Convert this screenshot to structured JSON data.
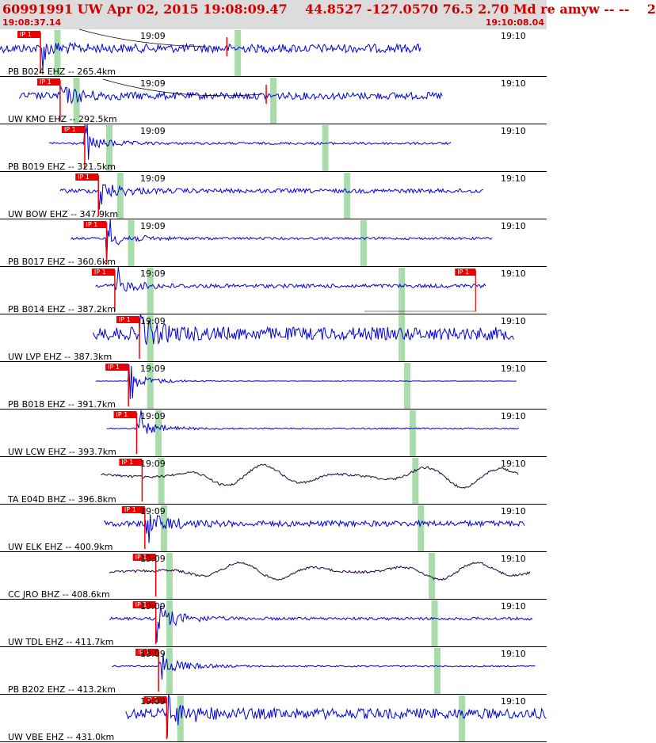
{
  "header": {
    "title": "60991991 UW Apr 02, 2015 19:08:09.47    44.8527 -127.0570 76.5 2.70 Md re amyw -- --    2",
    "start_time": "19:08:37.14",
    "end_time": "19:10:08.04"
  },
  "time_marks": [
    "19:09",
    "19:10"
  ],
  "pick_label": "IP 1",
  "colors": {
    "trace": "#0000dd",
    "broadband": "#220033",
    "pick": "#ee0000",
    "green_marker": "#a8dcaa",
    "header_text": "#cc0000",
    "header_bg": "#dcdcdc"
  },
  "traces": [
    {
      "label": "PB B024 EHZ -- 265.4km",
      "start": 0.0,
      "end": 0.77,
      "pick": 0.074,
      "green": [
        0.105,
        0.435
      ],
      "amp": 0.18,
      "burst": 0.2,
      "kind": "sp",
      "red2": 0.415,
      "label_1909": true
    },
    {
      "label": "UW KMO EHZ -- 292.5km",
      "start": 0.035,
      "end": 0.81,
      "pick": 0.11,
      "green": [
        0.14,
        0.5
      ],
      "amp": 0.15,
      "burst": 0.32,
      "kind": "sp",
      "red2": 0.487,
      "label_1909": true
    },
    {
      "label": "PB B019 EHZ -- 321.5km",
      "start": 0.09,
      "end": 0.825,
      "pick": 0.155,
      "green": [
        0.2,
        0.595
      ],
      "amp": 0.05,
      "burst": 0.3,
      "kind": "sp",
      "label_1909": true
    },
    {
      "label": "UW BOW EHZ -- 347.9km",
      "start": 0.11,
      "end": 0.885,
      "pick": 0.18,
      "green": [
        0.22,
        0.635
      ],
      "amp": 0.09,
      "burst": 0.35,
      "kind": "sp",
      "label_1909": true
    },
    {
      "label": "PB B017 EHZ -- 360.6km",
      "start": 0.13,
      "end": 0.9,
      "pick": 0.195,
      "green": [
        0.24,
        0.665
      ],
      "amp": 0.05,
      "burst": 0.35,
      "kind": "sp",
      "label_1909": true
    },
    {
      "label": "PB B014 EHZ -- 387.2km",
      "start": 0.175,
      "end": 0.89,
      "pick": 0.21,
      "green": [
        0.275,
        0.735
      ],
      "amp": 0.08,
      "burst": 0.25,
      "kind": "sp",
      "late_pick": 0.87,
      "label_1909": true
    },
    {
      "label": "UW LVP EHZ -- 387.3km",
      "start": 0.17,
      "end": 0.94,
      "pick": 0.255,
      "green": [
        0.275,
        0.735
      ],
      "amp": 0.27,
      "burst": 0.4,
      "kind": "sp",
      "label_1909": true
    },
    {
      "label": "PB B018 EHZ -- 391.7km",
      "start": 0.175,
      "end": 0.945,
      "pick": 0.235,
      "green": [
        0.275,
        0.745
      ],
      "amp": 0.01,
      "burst": 0.35,
      "kind": "sp",
      "label_1909": true
    },
    {
      "label": "UW LCW EHZ -- 393.7km",
      "start": 0.195,
      "end": 0.95,
      "pick": 0.25,
      "green": [
        0.29,
        0.755
      ],
      "amp": 0.03,
      "burst": 0.32,
      "kind": "sp",
      "label_1909": true
    },
    {
      "label": "TA E04D BHZ -- 396.8km",
      "start": 0.185,
      "end": 0.95,
      "pick": 0.26,
      "green": [
        0.295,
        0.76
      ],
      "amp": 0.35,
      "burst": 0.1,
      "kind": "bb",
      "label_1909": true
    },
    {
      "label": "UW ELK EHZ -- 400.9km",
      "start": 0.19,
      "end": 0.96,
      "pick": 0.265,
      "green": [
        0.3,
        0.77
      ],
      "amp": 0.12,
      "burst": 0.42,
      "kind": "sp",
      "label_1909": true
    },
    {
      "label": "CC JRO BHZ -- 408.6km",
      "start": 0.2,
      "end": 0.97,
      "pick": 0.285,
      "green": [
        0.31,
        0.79
      ],
      "amp": 0.28,
      "burst": 0.1,
      "kind": "bb",
      "label_1909": true
    },
    {
      "label": "UW TDL EHZ -- 411.7km",
      "start": 0.2,
      "end": 0.975,
      "pick": 0.285,
      "green": [
        0.31,
        0.795
      ],
      "amp": 0.06,
      "burst": 0.5,
      "kind": "sp",
      "label_1909": true
    },
    {
      "label": "PB B202 EHZ -- 413.2km",
      "start": 0.205,
      "end": 0.98,
      "pick": 0.29,
      "green": [
        0.31,
        0.8
      ],
      "amp": 0.03,
      "burst": 0.45,
      "kind": "sp",
      "label_1909": true
    },
    {
      "label": "UW VBE EHZ -- 431.0km",
      "start": 0.23,
      "end": 1.0,
      "pick": 0.305,
      "green": [
        0.33,
        0.845
      ],
      "amp": 0.22,
      "burst": 0.45,
      "kind": "sp",
      "label_1909": true
    }
  ]
}
